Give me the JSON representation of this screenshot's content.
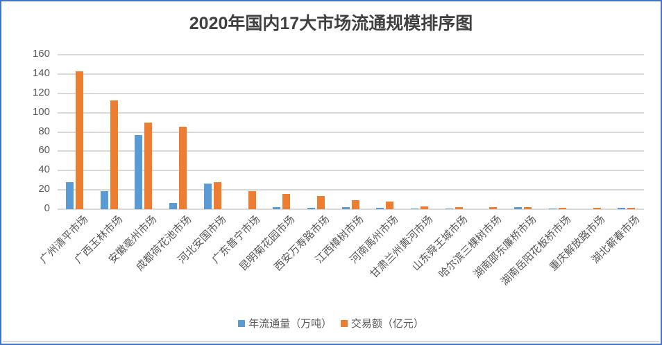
{
  "chart_data": {
    "type": "bar",
    "title": "2020年国内17大市场流通规模排序图",
    "xlabel": "",
    "ylabel": "",
    "ylim": [
      0,
      160
    ],
    "yticks": [
      0,
      20,
      40,
      60,
      80,
      100,
      120,
      140,
      160
    ],
    "grid": true,
    "legend_position": "bottom",
    "categories": [
      "广州清平市场",
      "广西玉林市场",
      "安徽亳州市场",
      "成都荷花池市场",
      "河北安国市场",
      "广东普宁市场",
      "昆明菊花园市场",
      "西安万寿路市场",
      "江西樟树市场",
      "河南禹州市场",
      "甘肃兰州黄河市场",
      "山东舜王城市场",
      "哈尔滨三棵树市场",
      "湖南邵东廉桥市场",
      "湖南岳阳花板桥市场",
      "重庆解放路市场",
      "湖北蕲春市场"
    ],
    "series": [
      {
        "name": "年流通量（万吨）",
        "color": "#5B9BD5",
        "values": [
          28,
          18.5,
          76.5,
          6.8,
          26.5,
          0,
          2.5,
          1.8,
          2.5,
          1.8,
          0.8,
          0.8,
          0,
          2.3,
          0.8,
          0,
          1.5
        ]
      },
      {
        "name": "交易额（亿元）",
        "color": "#ED7D31",
        "values": [
          142.6,
          112.6,
          90,
          85.7,
          28,
          18.8,
          15.8,
          13.6,
          9.2,
          7.7,
          3,
          2.3,
          2.3,
          2.3,
          1.5,
          1.5,
          1.5
        ]
      }
    ]
  },
  "colors": {
    "frame_border": "#4472C4",
    "gridline": "#D9D9D9",
    "text": "#595959",
    "title_text": "#404040"
  }
}
